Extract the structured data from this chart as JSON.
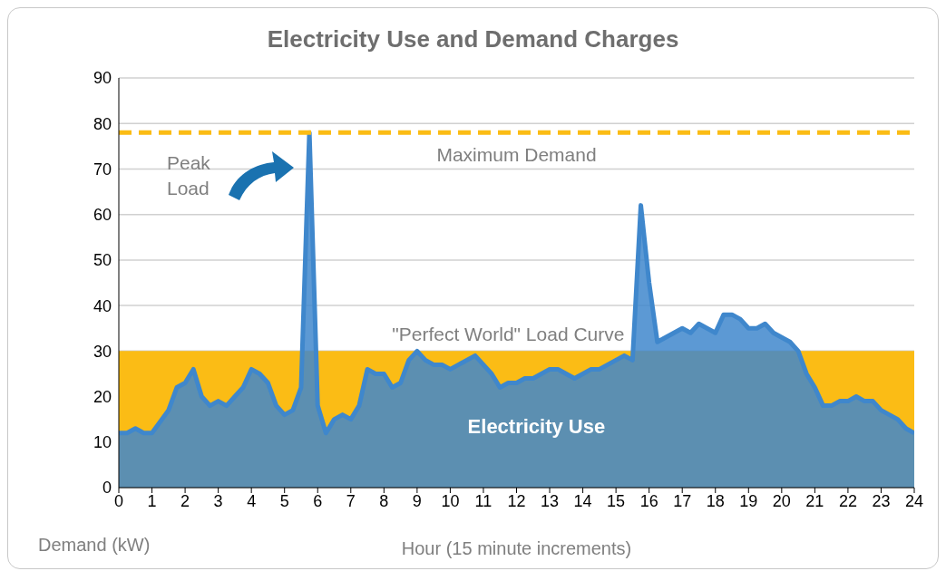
{
  "chart_data": {
    "type": "area",
    "title": "Electricity Use and Demand Charges",
    "xlabel": "Hour (15 minute increments)",
    "ylabel": "Demand (kW)",
    "series": [
      {
        "name": "\"Perfect World\" Load Curve",
        "color": "#fbbc15",
        "x": [
          0,
          24
        ],
        "values": [
          30,
          30
        ]
      },
      {
        "name": "Electricity Use",
        "color": "#3f87cc",
        "x": [
          0,
          0.25,
          0.5,
          0.75,
          1,
          1.5,
          1.75,
          2,
          2.25,
          2.5,
          2.75,
          3,
          3.25,
          3.5,
          3.75,
          4,
          4.25,
          4.5,
          4.75,
          5,
          5.25,
          5.5,
          5.75,
          6,
          6.25,
          6.5,
          6.75,
          7,
          7.25,
          7.5,
          7.75,
          8,
          8.25,
          8.5,
          8.75,
          9,
          9.25,
          9.5,
          9.75,
          10,
          10.25,
          10.75,
          11,
          11.25,
          11.5,
          11.75,
          12,
          12.25,
          12.5,
          13,
          13.25,
          13.5,
          13.75,
          14,
          14.25,
          14.5,
          14.75,
          15,
          15.25,
          15.5,
          15.75,
          16,
          16.25,
          16.5,
          16.75,
          17,
          17.25,
          17.5,
          17.75,
          18,
          18.25,
          18.5,
          18.75,
          19,
          19.25,
          19.5,
          19.75,
          20,
          20.25,
          20.5,
          20.75,
          21,
          21.25,
          21.5,
          21.75,
          22,
          22.25,
          22.5,
          22.75,
          23,
          23.25,
          23.5,
          23.75,
          24
        ],
        "values": [
          12,
          12,
          13,
          12,
          12,
          17,
          22,
          23,
          26,
          20,
          18,
          19,
          18,
          20,
          22,
          26,
          25,
          23,
          18,
          16,
          17,
          22,
          78,
          18,
          12,
          15,
          16,
          15,
          18,
          26,
          25,
          25,
          22,
          23,
          28,
          30,
          28,
          27,
          27,
          26,
          27,
          29,
          27,
          25,
          22,
          23,
          23,
          24,
          24,
          26,
          26,
          25,
          24,
          25,
          26,
          26,
          27,
          28,
          29,
          28,
          62,
          45,
          32,
          33,
          34,
          35,
          34,
          36,
          35,
          34,
          38,
          38,
          37,
          35,
          35,
          36,
          34,
          33,
          32,
          30,
          25,
          22,
          18,
          18,
          19,
          19,
          20,
          19,
          19,
          17,
          16,
          15,
          13,
          12
        ]
      }
    ],
    "xlim": [
      0,
      24
    ],
    "xticks": [
      0,
      1,
      2,
      3,
      4,
      5,
      6,
      7,
      8,
      9,
      10,
      11,
      12,
      13,
      14,
      15,
      16,
      17,
      18,
      19,
      20,
      21,
      22,
      23,
      24
    ],
    "ylim": [
      0,
      90
    ],
    "yticks": [
      0,
      10,
      20,
      30,
      40,
      50,
      60,
      70,
      80,
      90
    ],
    "grid": "y",
    "ref_lines": [
      {
        "axis": "y",
        "value": 78,
        "label": "Maximum Demand",
        "color": "#fbbc15",
        "line_style": "dashed"
      }
    ],
    "annotations": [
      "Peak Load"
    ]
  }
}
